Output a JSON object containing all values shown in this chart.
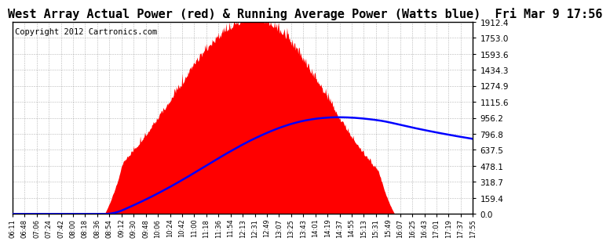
{
  "title": "West Array Actual Power (red) & Running Average Power (Watts blue)  Fri Mar 9 17:56",
  "copyright": "Copyright 2012 Cartronics.com",
  "y_max": 1912.4,
  "y_ticks": [
    0.0,
    159.4,
    318.7,
    478.1,
    637.5,
    796.8,
    956.2,
    1115.6,
    1274.9,
    1434.3,
    1593.6,
    1753.0,
    1912.4
  ],
  "x_labels": [
    "06:11",
    "06:48",
    "07:06",
    "07:24",
    "07:42",
    "08:00",
    "08:18",
    "08:36",
    "08:54",
    "09:12",
    "09:30",
    "09:48",
    "10:06",
    "10:24",
    "10:42",
    "11:00",
    "11:18",
    "11:36",
    "11:54",
    "12:13",
    "12:31",
    "12:49",
    "13:07",
    "13:25",
    "13:43",
    "14:01",
    "14:19",
    "14:37",
    "14:55",
    "15:13",
    "15:31",
    "15:49",
    "16:07",
    "16:25",
    "16:43",
    "17:01",
    "17:19",
    "17:37",
    "17:55"
  ],
  "background_color": "#ffffff",
  "plot_background": "#ffffff",
  "grid_color": "#888888",
  "actual_color": "#ff0000",
  "avg_color": "#0000ff",
  "title_fontsize": 11,
  "copyright_fontsize": 7.5
}
